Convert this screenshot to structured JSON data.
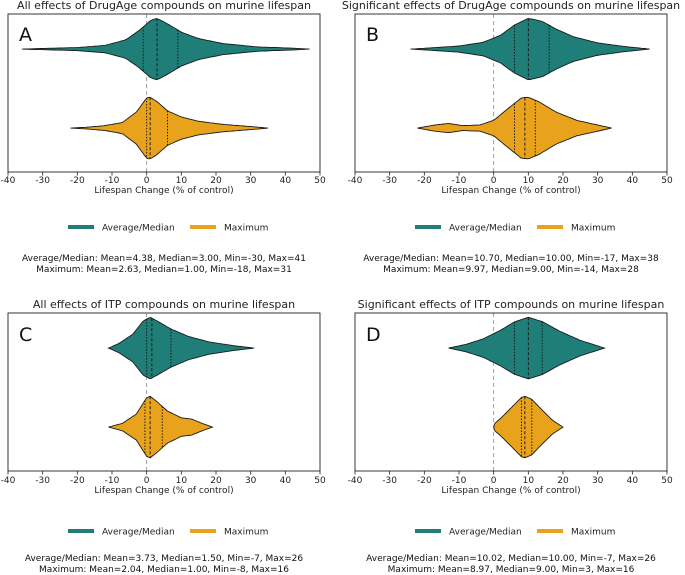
{
  "colors": {
    "average": "#1f7f78",
    "maximum": "#e8a21c",
    "zero_line": "#888888",
    "frame": "#222222"
  },
  "chart_data": [
    {
      "type": "violin",
      "panel": "A",
      "title": "All effects of DrugAge compounds on murine lifespan",
      "xlabel": "Lifespan Change (% of control)",
      "xlim": [
        -40,
        50
      ],
      "xticks": [
        -40,
        -30,
        -20,
        -10,
        0,
        10,
        20,
        30,
        40,
        50
      ],
      "series": [
        {
          "name": "Average/Median",
          "color_key": "average",
          "min": -36,
          "max": 47,
          "quartiles": [
            -1,
            3,
            9
          ],
          "density": [
            [
              -36,
              0.0
            ],
            [
              -30,
              0.02
            ],
            [
              -20,
              0.05
            ],
            [
              -12,
              0.12
            ],
            [
              -6,
              0.3
            ],
            [
              -2,
              0.62
            ],
            [
              1,
              0.92
            ],
            [
              3,
              1.0
            ],
            [
              6,
              0.82
            ],
            [
              10,
              0.55
            ],
            [
              15,
              0.34
            ],
            [
              22,
              0.18
            ],
            [
              32,
              0.07
            ],
            [
              42,
              0.03
            ],
            [
              47,
              0.0
            ]
          ]
        },
        {
          "name": "Maximum",
          "color_key": "maximum",
          "min": -22,
          "max": 35,
          "quartiles": [
            0,
            1,
            6
          ],
          "density": [
            [
              -22,
              0.0
            ],
            [
              -17,
              0.03
            ],
            [
              -12,
              0.08
            ],
            [
              -7,
              0.18
            ],
            [
              -3,
              0.52
            ],
            [
              0,
              0.98
            ],
            [
              1,
              1.0
            ],
            [
              3,
              0.86
            ],
            [
              6,
              0.56
            ],
            [
              10,
              0.36
            ],
            [
              15,
              0.22
            ],
            [
              22,
              0.12
            ],
            [
              30,
              0.05
            ],
            [
              35,
              0.0
            ]
          ]
        }
      ],
      "legend": [
        "Average/Median",
        "Maximum"
      ],
      "stats": [
        "Average/Median: Mean=4.38, Median=3.00, Min=-30, Max=41",
        "Maximum: Mean=2.63, Median=1.00, Min=-18, Max=31"
      ]
    },
    {
      "type": "violin",
      "panel": "B",
      "title": "Significant effects of DrugAge compounds on murine lifespan",
      "xlabel": "Lifespan Change (% of control)",
      "xlim": [
        -40,
        50
      ],
      "xticks": [
        -40,
        -30,
        -20,
        -10,
        0,
        10,
        20,
        30,
        40,
        50
      ],
      "series": [
        {
          "name": "Average/Median",
          "color_key": "average",
          "min": -24,
          "max": 45,
          "quartiles": [
            6,
            10,
            16
          ],
          "density": [
            [
              -24,
              0.0
            ],
            [
              -18,
              0.04
            ],
            [
              -10,
              0.1
            ],
            [
              -3,
              0.22
            ],
            [
              2,
              0.45
            ],
            [
              6,
              0.78
            ],
            [
              10,
              1.0
            ],
            [
              14,
              0.9
            ],
            [
              18,
              0.65
            ],
            [
              23,
              0.4
            ],
            [
              30,
              0.2
            ],
            [
              38,
              0.08
            ],
            [
              45,
              0.0
            ]
          ]
        },
        {
          "name": "Maximum",
          "color_key": "maximum",
          "min": -22,
          "max": 34,
          "quartiles": [
            6,
            9,
            12
          ],
          "density": [
            [
              -22,
              0.0
            ],
            [
              -17,
              0.1
            ],
            [
              -13,
              0.15
            ],
            [
              -9,
              0.08
            ],
            [
              -4,
              0.1
            ],
            [
              0,
              0.25
            ],
            [
              4,
              0.62
            ],
            [
              8,
              0.98
            ],
            [
              10,
              1.0
            ],
            [
              13,
              0.86
            ],
            [
              18,
              0.52
            ],
            [
              24,
              0.25
            ],
            [
              30,
              0.1
            ],
            [
              34,
              0.0
            ]
          ]
        }
      ],
      "legend": [
        "Average/Median",
        "Maximum"
      ],
      "stats": [
        "Average/Median: Mean=10.70, Median=10.00, Min=-17, Max=38",
        "Maximum: Mean=9.97, Median=9.00, Min=-14, Max=28"
      ]
    },
    {
      "type": "violin",
      "panel": "C",
      "title": "All effects of ITP compounds on murine lifespan",
      "xlabel": "Lifespan Change (% of control)",
      "xlim": [
        -40,
        50
      ],
      "xticks": [
        -40,
        -30,
        -20,
        -10,
        0,
        10,
        20,
        30,
        40,
        50
      ],
      "series": [
        {
          "name": "Average/Median",
          "color_key": "average",
          "min": -11,
          "max": 31,
          "quartiles": [
            0,
            1.5,
            7
          ],
          "density": [
            [
              -11,
              0.0
            ],
            [
              -8,
              0.15
            ],
            [
              -4,
              0.45
            ],
            [
              -1,
              0.88
            ],
            [
              1,
              1.0
            ],
            [
              3,
              0.88
            ],
            [
              7,
              0.62
            ],
            [
              12,
              0.38
            ],
            [
              18,
              0.2
            ],
            [
              25,
              0.08
            ],
            [
              31,
              0.0
            ]
          ]
        },
        {
          "name": "Maximum",
          "color_key": "maximum",
          "min": -11,
          "max": 19,
          "quartiles": [
            -0.5,
            1,
            4.5
          ],
          "density": [
            [
              -11,
              0.0
            ],
            [
              -7,
              0.12
            ],
            [
              -3,
              0.42
            ],
            [
              0,
              0.95
            ],
            [
              1,
              1.0
            ],
            [
              3,
              0.82
            ],
            [
              6,
              0.52
            ],
            [
              10,
              0.3
            ],
            [
              13,
              0.26
            ],
            [
              16,
              0.12
            ],
            [
              19,
              0.0
            ]
          ]
        }
      ],
      "legend": [
        "Average/Median",
        "Maximum"
      ],
      "stats": [
        "Average/Median: Mean=3.73, Median=1.50, Min=-7, Max=26",
        "Maximum: Mean=2.04, Median=1.00, Min=-8, Max=16"
      ]
    },
    {
      "type": "violin",
      "panel": "D",
      "title": "Significant effects of ITP compounds on murine lifespan",
      "xlabel": "Lifespan Change (% of control)",
      "xlim": [
        -40,
        50
      ],
      "xticks": [
        -40,
        -30,
        -20,
        -10,
        0,
        10,
        20,
        30,
        40,
        50
      ],
      "series": [
        {
          "name": "Average/Median",
          "color_key": "average",
          "min": -13,
          "max": 32,
          "quartiles": [
            6,
            10,
            14
          ],
          "density": [
            [
              -13,
              0.0
            ],
            [
              -8,
              0.12
            ],
            [
              -3,
              0.3
            ],
            [
              2,
              0.58
            ],
            [
              6,
              0.85
            ],
            [
              10,
              1.0
            ],
            [
              14,
              0.86
            ],
            [
              19,
              0.55
            ],
            [
              25,
              0.25
            ],
            [
              32,
              0.0
            ]
          ]
        },
        {
          "name": "Maximum",
          "color_key": "maximum",
          "min": 0,
          "max": 20,
          "quartiles": [
            8,
            9,
            11
          ],
          "density": [
            [
              0,
              0.0
            ],
            [
              0.3,
              0.12
            ],
            [
              2,
              0.28
            ],
            [
              5,
              0.62
            ],
            [
              8,
              0.96
            ],
            [
              9,
              1.0
            ],
            [
              11,
              0.9
            ],
            [
              14,
              0.55
            ],
            [
              17,
              0.22
            ],
            [
              20,
              0.0
            ]
          ]
        }
      ],
      "legend": [
        "Average/Median",
        "Maximum"
      ],
      "stats": [
        "Average/Median: Mean=10.02, Median=10.00, Min=-7, Max=26",
        "Maximum: Mean=8.97, Median=9.00, Min=3, Max=16"
      ]
    }
  ]
}
